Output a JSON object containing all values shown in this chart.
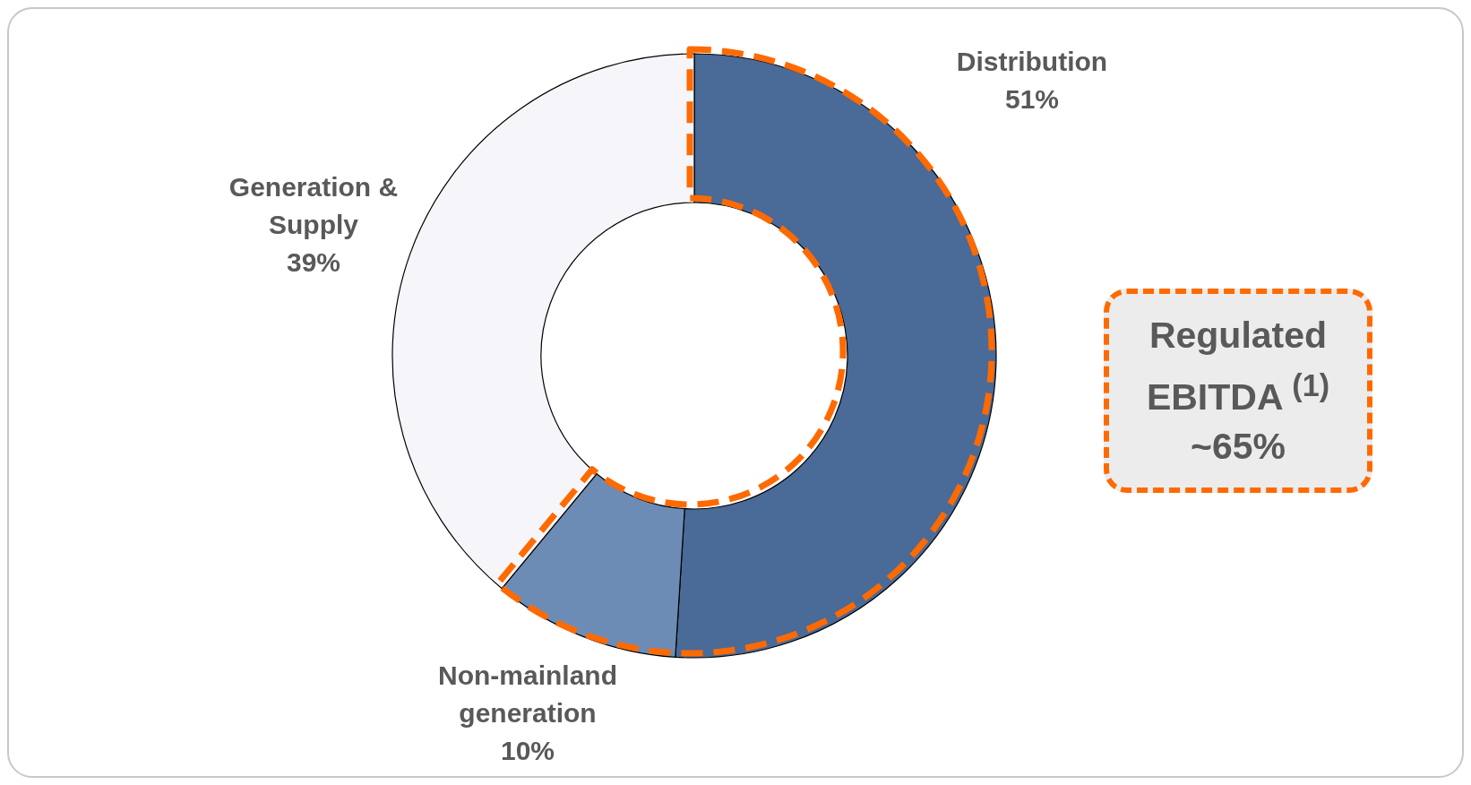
{
  "chart_data": {
    "type": "donut",
    "categories": [
      "Distribution",
      "Non-mainland generation",
      "Generation & Supply"
    ],
    "values": [
      51,
      10,
      39
    ],
    "value_labels": [
      "51%",
      "10%",
      "39%"
    ],
    "colors": [
      "#4a6a98",
      "#6d8cb5",
      "#f6f6fa"
    ],
    "annotations": [
      "Regulated EBITDA $^{(1)}$ ~65%"
    ]
  }
}
